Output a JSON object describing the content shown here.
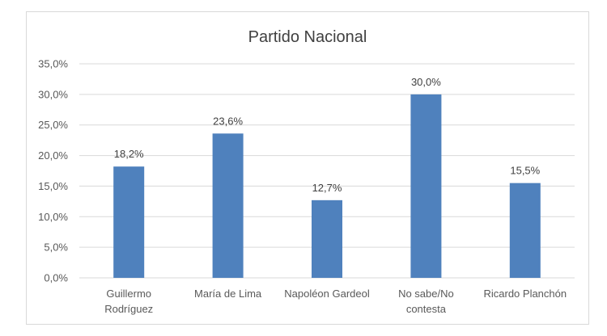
{
  "chart_data": {
    "type": "bar",
    "title": "Partido Nacional",
    "categories": [
      [
        "Guillermo",
        "Rodríguez"
      ],
      [
        "María de Lima"
      ],
      [
        "Napoléon Gardeol"
      ],
      [
        "No sabe/No",
        "contesta"
      ],
      [
        "Ricardo Planchón"
      ]
    ],
    "values": [
      18.2,
      23.6,
      12.7,
      30.0,
      15.5
    ],
    "value_labels": [
      "18,2%",
      "23,6%",
      "12,7%",
      "30,0%",
      "15,5%"
    ],
    "y_ticks": [
      "0,0%",
      "5,0%",
      "10,0%",
      "15,0%",
      "20,0%",
      "25,0%",
      "30,0%",
      "35,0%"
    ],
    "ylim": [
      0,
      35
    ],
    "grid": true,
    "bar_color": "#4f81bd",
    "xlabel": "",
    "ylabel": ""
  }
}
